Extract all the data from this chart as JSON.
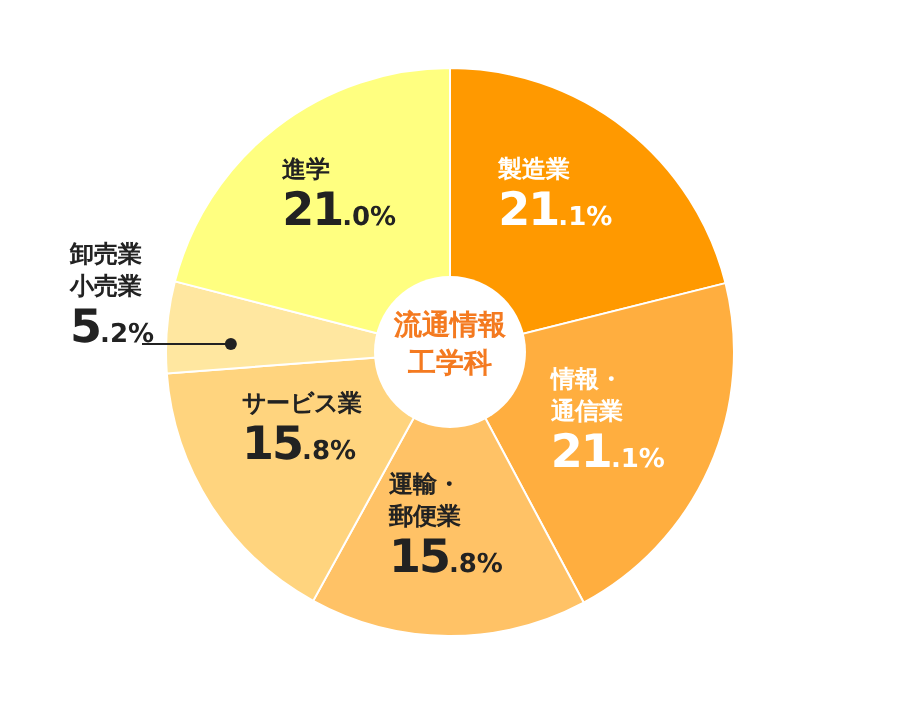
{
  "chart_data": {
    "type": "donut",
    "title": "流通情報工学科",
    "categories": [
      "製造業",
      "情報・通信業",
      "運輸・郵便業",
      "サービス業",
      "卸売業小売業",
      "進学"
    ],
    "values": [
      21.1,
      21.1,
      15.8,
      15.8,
      5.2,
      21.0
    ],
    "value_labels": [
      "21.1%",
      "21.1%",
      "15.8%",
      "15.8%",
      "5.2%",
      "21.0%"
    ],
    "colors": [
      "#ff9900",
      "#ffae3f",
      "#ffc266",
      "#ffd47e",
      "#ffe7a0",
      "#ffff80"
    ]
  }
}
